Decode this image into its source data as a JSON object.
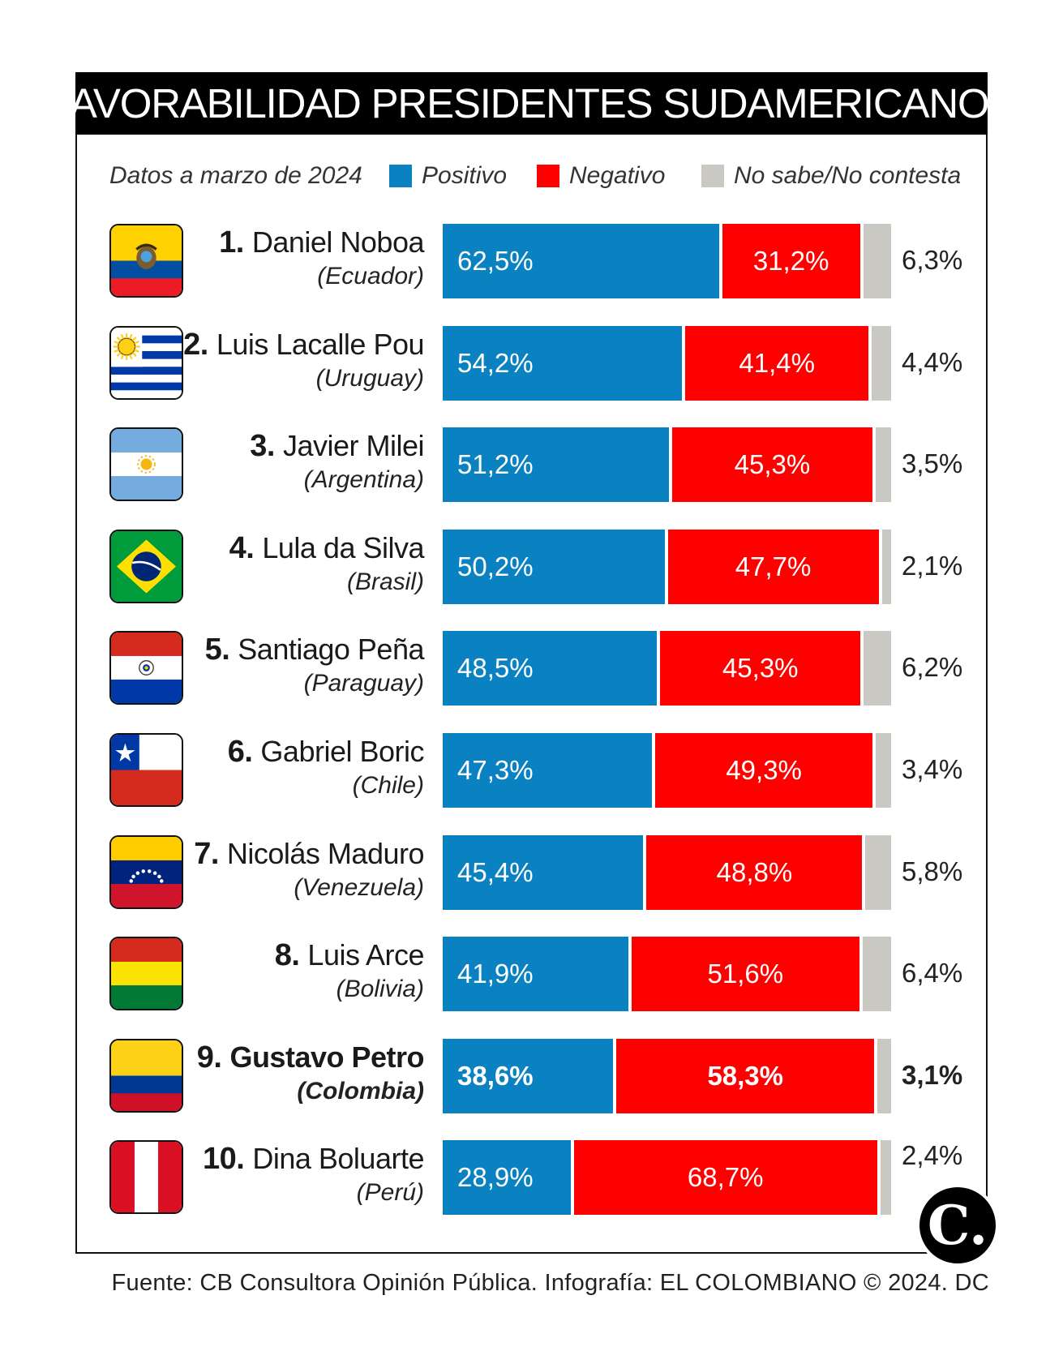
{
  "title": "FAVORABILIDAD PRESIDENTES SUDAMERICANOS",
  "legend": {
    "date_note": "Datos a marzo de 2024",
    "positive": "Positivo",
    "negative": "Negativo",
    "no_answer": "No sabe/No contesta"
  },
  "colors": {
    "positive": "#0a82c2",
    "negative": "#ff0000",
    "no_answer": "#cac8c3",
    "title_bg": "#000000"
  },
  "chart_data": {
    "type": "bar",
    "stacked": true,
    "orientation": "horizontal",
    "title": "FAVORABILIDAD PRESIDENTES SUDAMERICANOS",
    "unit": "%",
    "xlim": [
      0,
      100
    ],
    "series_names": [
      "Positivo",
      "Negativo",
      "No sabe/No contesta"
    ],
    "rows": [
      {
        "rank": "1.",
        "name": "Daniel Noboa",
        "country": "(Ecuador)",
        "flag": "ecuador-flag-icon",
        "positive": 62.5,
        "negative": 31.2,
        "no_answer": 6.3,
        "positive_label": "62,5%",
        "negative_label": "31,2%",
        "no_answer_label": "6,3%",
        "highlight": false
      },
      {
        "rank": "2.",
        "name": "Luis Lacalle Pou",
        "country": "(Uruguay)",
        "flag": "uruguay-flag-icon",
        "positive": 54.2,
        "negative": 41.4,
        "no_answer": 4.4,
        "positive_label": "54,2%",
        "negative_label": "41,4%",
        "no_answer_label": "4,4%",
        "highlight": false
      },
      {
        "rank": "3.",
        "name": "Javier Milei",
        "country": "(Argentina)",
        "flag": "argentina-flag-icon",
        "positive": 51.2,
        "negative": 45.3,
        "no_answer": 3.5,
        "positive_label": "51,2%",
        "negative_label": "45,3%",
        "no_answer_label": "3,5%",
        "highlight": false
      },
      {
        "rank": "4.",
        "name": "Lula da Silva",
        "country": "(Brasil)",
        "flag": "brazil-flag-icon",
        "positive": 50.2,
        "negative": 47.7,
        "no_answer": 2.1,
        "positive_label": "50,2%",
        "negative_label": "47,7%",
        "no_answer_label": "2,1%",
        "highlight": false
      },
      {
        "rank": "5.",
        "name": "Santiago Peña",
        "country": "(Paraguay)",
        "flag": "paraguay-flag-icon",
        "positive": 48.5,
        "negative": 45.3,
        "no_answer": 6.2,
        "positive_label": "48,5%",
        "negative_label": "45,3%",
        "no_answer_label": "6,2%",
        "highlight": false
      },
      {
        "rank": "6.",
        "name": "Gabriel Boric",
        "country": "(Chile)",
        "flag": "chile-flag-icon",
        "positive": 47.3,
        "negative": 49.3,
        "no_answer": 3.4,
        "positive_label": "47,3%",
        "negative_label": "49,3%",
        "no_answer_label": "3,4%",
        "highlight": false
      },
      {
        "rank": "7.",
        "name": "Nicolás Maduro",
        "country": "(Venezuela)",
        "flag": "venezuela-flag-icon",
        "positive": 45.4,
        "negative": 48.8,
        "no_answer": 5.8,
        "positive_label": "45,4%",
        "negative_label": "48,8%",
        "no_answer_label": "5,8%",
        "highlight": false
      },
      {
        "rank": "8.",
        "name": "Luis Arce",
        "country": "(Bolivia)",
        "flag": "bolivia-flag-icon",
        "positive": 41.9,
        "negative": 51.6,
        "no_answer": 6.4,
        "positive_label": "41,9%",
        "negative_label": "51,6%",
        "no_answer_label": "6,4%",
        "highlight": false
      },
      {
        "rank": "9.",
        "name": "Gustavo Petro",
        "country": "(Colombia)",
        "flag": "colombia-flag-icon",
        "positive": 38.6,
        "negative": 58.3,
        "no_answer": 3.1,
        "positive_label": "38,6%",
        "negative_label": "58,3%",
        "no_answer_label": "3,1%",
        "highlight": true
      },
      {
        "rank": "10.",
        "name": "Dina Boluarte",
        "country": "(Perú)",
        "flag": "peru-flag-icon",
        "positive": 28.9,
        "negative": 68.7,
        "no_answer": 2.4,
        "positive_label": "28,9%",
        "negative_label": "68,7%",
        "no_answer_label": "2,4%",
        "highlight": false
      }
    ]
  },
  "logo": {
    "letter": "C.",
    "icon": "el-colombiano-logo-icon"
  },
  "footer": "Fuente: CB Consultora Opinión Pública. Infografía: EL COLOMBIANO © 2024. DC"
}
